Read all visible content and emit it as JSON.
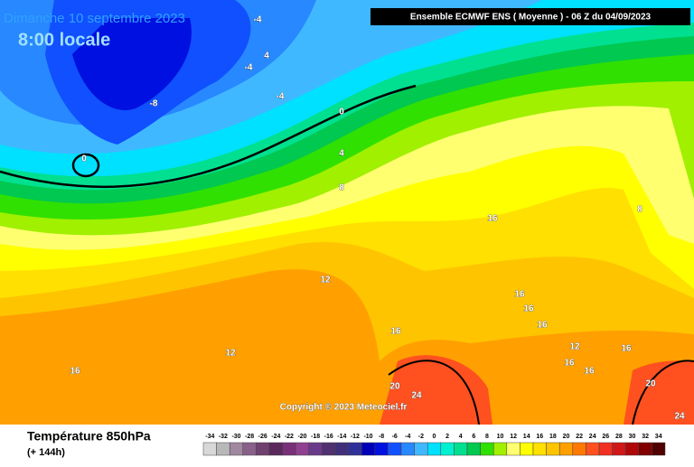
{
  "header": {
    "date": "Dimanche 10 septembre 2023",
    "time": "8:00 locale",
    "model": "Ensemble ECMWF ENS  ( Moyenne )  -  06 Z du 04/09/2023"
  },
  "copyright": "Copyright © 2023 Meteociel.fr",
  "footer": {
    "title": "Température 850hPa",
    "lead": "(+ 144h)"
  },
  "scale": {
    "values": [
      -34,
      -32,
      -30,
      -28,
      -26,
      -24,
      -22,
      -20,
      -18,
      -16,
      -14,
      -12,
      -10,
      -8,
      -6,
      -4,
      -2,
      0,
      2,
      4,
      6,
      8,
      10,
      12,
      14,
      16,
      18,
      20,
      22,
      24,
      26,
      28,
      30,
      32,
      34
    ],
    "colors": [
      "#d8d8d8",
      "#b8b8b8",
      "#a088a0",
      "#886088",
      "#704070",
      "#5a285a",
      "#783078",
      "#904090",
      "#6a3a8a",
      "#503070",
      "#40307a",
      "#30309a",
      "#0000b8",
      "#0010e0",
      "#1050ff",
      "#2888ff",
      "#40b8ff",
      "#00e0ff",
      "#00f0d0",
      "#00e090",
      "#00c850",
      "#30e000",
      "#a0f000",
      "#ffff70",
      "#ffff00",
      "#ffe000",
      "#ffc400",
      "#ffa000",
      "#ff7800",
      "#ff5020",
      "#f03020",
      "#d01818",
      "#b00808",
      "#800000",
      "#500000"
    ]
  },
  "contour_labels": [
    -4,
    4,
    -4,
    -4,
    -8,
    0,
    0,
    4,
    8,
    16,
    8,
    12,
    16,
    16,
    16,
    16,
    12,
    16,
    12,
    16,
    16,
    16,
    20,
    24,
    20,
    24
  ]
}
